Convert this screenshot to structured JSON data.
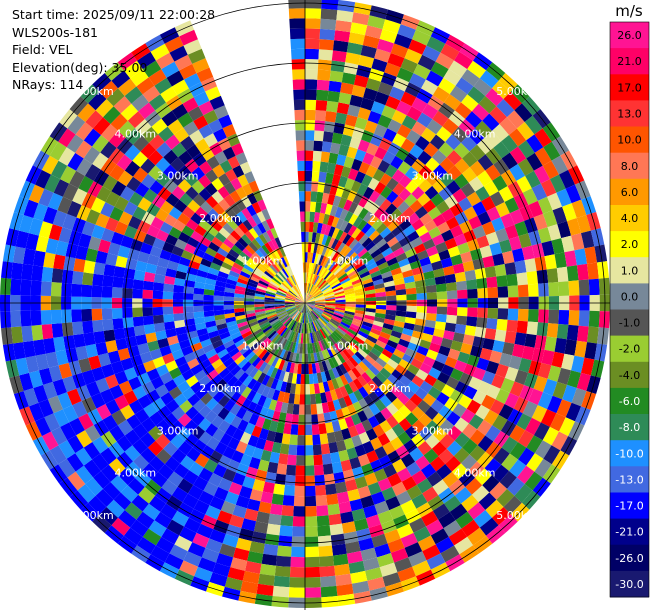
{
  "header": {
    "start_time": "Start time: 2025/09/11 22:00:28",
    "instrument": "WLS200s-181",
    "field": "Field: VEL",
    "elevation": "Elevation(deg): 35.00",
    "nrays": "NRays: 114"
  },
  "chart_data": {
    "type": "heatmap",
    "projection": "polar-ppi",
    "field": "VEL",
    "units": "m/s",
    "elevation_deg": 35.0,
    "n_rays": 114,
    "range_max_km": 5.0,
    "range_rings_km": [
      1.0,
      2.0,
      3.0,
      4.0,
      5.0
    ],
    "ring_labels": [
      "1.00km",
      "2.00km",
      "3.00km",
      "4.00km",
      "5.00km"
    ],
    "missing_sector_deg": [
      337,
      358
    ],
    "colorbar": {
      "title": "m/s",
      "ticks": [
        "26.0",
        "21.0",
        "17.0",
        "13.0",
        "10.0",
        "8.0",
        "6.0",
        "4.0",
        "2.0",
        "1.0",
        "0.0",
        "-1.0",
        "-2.0",
        "-4.0",
        "-6.0",
        "-8.0",
        "-10.0",
        "-13.0",
        "-17.0",
        "-21.0",
        "-26.0",
        "-30.0"
      ],
      "colors": [
        "#ff1493",
        "#ff0066",
        "#ff0000",
        "#ff3333",
        "#ff5500",
        "#ff7755",
        "#ff9900",
        "#ffcc00",
        "#ffff00",
        "#e6e6a0",
        "#778899",
        "#555555",
        "#9acd32",
        "#6b8e23",
        "#228b22",
        "#2e8b57",
        "#1e90ff",
        "#4169e1",
        "#0000ff",
        "#00008b",
        "#000066",
        "#191970"
      ]
    }
  }
}
